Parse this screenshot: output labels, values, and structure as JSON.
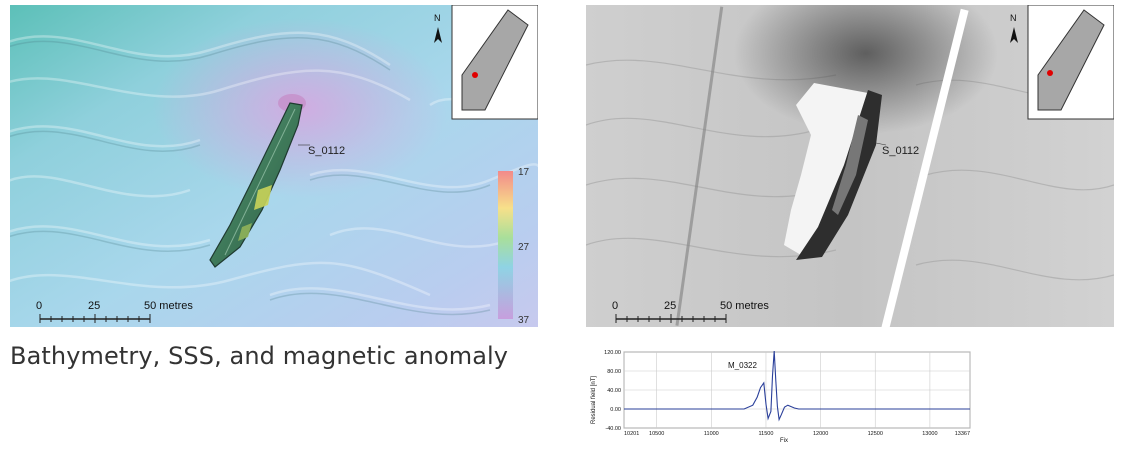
{
  "caption": "Bathymetry, SSS, and magnetic anomaly",
  "bathymetry": {
    "target_label": "S_0112",
    "north_label": "N",
    "scale": {
      "ticks": [
        "0",
        "25",
        "50 metres"
      ]
    },
    "legend": {
      "values": [
        "17",
        "27",
        "37"
      ]
    },
    "location_marker_color": "#e00000"
  },
  "sss": {
    "target_label": "S_0112",
    "north_label": "N",
    "scale": {
      "ticks": [
        "0",
        "25",
        "50 metres"
      ]
    },
    "location_marker_color": "#e00000"
  },
  "magnetic": {
    "anomaly_label": "M_0322",
    "ylabel": "Residual field [nT]",
    "xlabel": "Fix",
    "line_color": "#2a3f9a",
    "chart_data": {
      "type": "line",
      "title": "",
      "ylabel": "Residual field [nT]",
      "xlabel": "Fix",
      "ylim": [
        -40,
        120
      ],
      "xlim": [
        10201,
        13367
      ],
      "y_ticks": [
        "120.00",
        "80.00",
        "40.00",
        "0.00",
        "-40.00"
      ],
      "x_ticks": [
        "10201",
        "10500",
        "11000",
        "11500",
        "12000",
        "12500",
        "13000",
        "13367"
      ],
      "grid": true,
      "series": [
        {
          "x": [
            10201,
            11000,
            11150,
            11300,
            11380,
            11420,
            11450,
            11480,
            11500,
            11520,
            11545,
            11560,
            11575,
            11590,
            11605,
            11620,
            11640,
            11670,
            11700,
            11760,
            11800,
            11850,
            12000,
            13367
          ],
          "y": [
            0,
            0,
            0,
            0,
            8,
            25,
            45,
            55,
            10,
            -20,
            -5,
            70,
            122,
            60,
            5,
            -22,
            -12,
            4,
            8,
            2,
            0,
            0,
            0,
            0
          ]
        }
      ]
    }
  }
}
